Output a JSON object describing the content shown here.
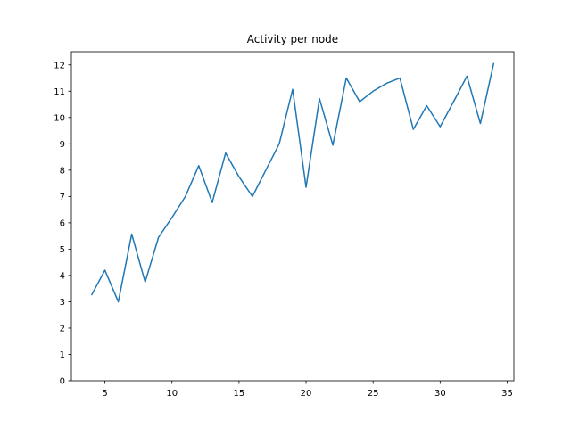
{
  "chart_data": {
    "type": "line",
    "title": "Activity per node",
    "xlabel": "",
    "ylabel": "",
    "xlim": [
      2.5,
      35.5
    ],
    "ylim": [
      0,
      12.5
    ],
    "xticks": [
      5,
      10,
      15,
      20,
      25,
      30,
      35
    ],
    "yticks": [
      0,
      1,
      2,
      3,
      4,
      5,
      6,
      7,
      8,
      9,
      10,
      11,
      12
    ],
    "grid": false,
    "series": [
      {
        "color": "#1f77b4",
        "x": [
          4,
          5,
          6,
          7,
          8,
          9,
          10,
          11,
          12,
          13,
          14,
          15,
          16,
          17,
          18,
          19,
          20,
          21,
          22,
          23,
          24,
          25,
          26,
          27,
          28,
          29,
          30,
          31,
          32,
          33,
          34
        ],
        "y": [
          3.25,
          4.2,
          3.0,
          5.57,
          3.75,
          5.45,
          6.2,
          7.0,
          8.17,
          6.77,
          8.65,
          7.75,
          7.0,
          8.0,
          9.0,
          11.07,
          7.35,
          10.72,
          8.95,
          11.5,
          10.6,
          11.0,
          11.3,
          11.5,
          9.55,
          10.45,
          9.65,
          10.6,
          11.57,
          9.77,
          12.07
        ]
      }
    ]
  }
}
